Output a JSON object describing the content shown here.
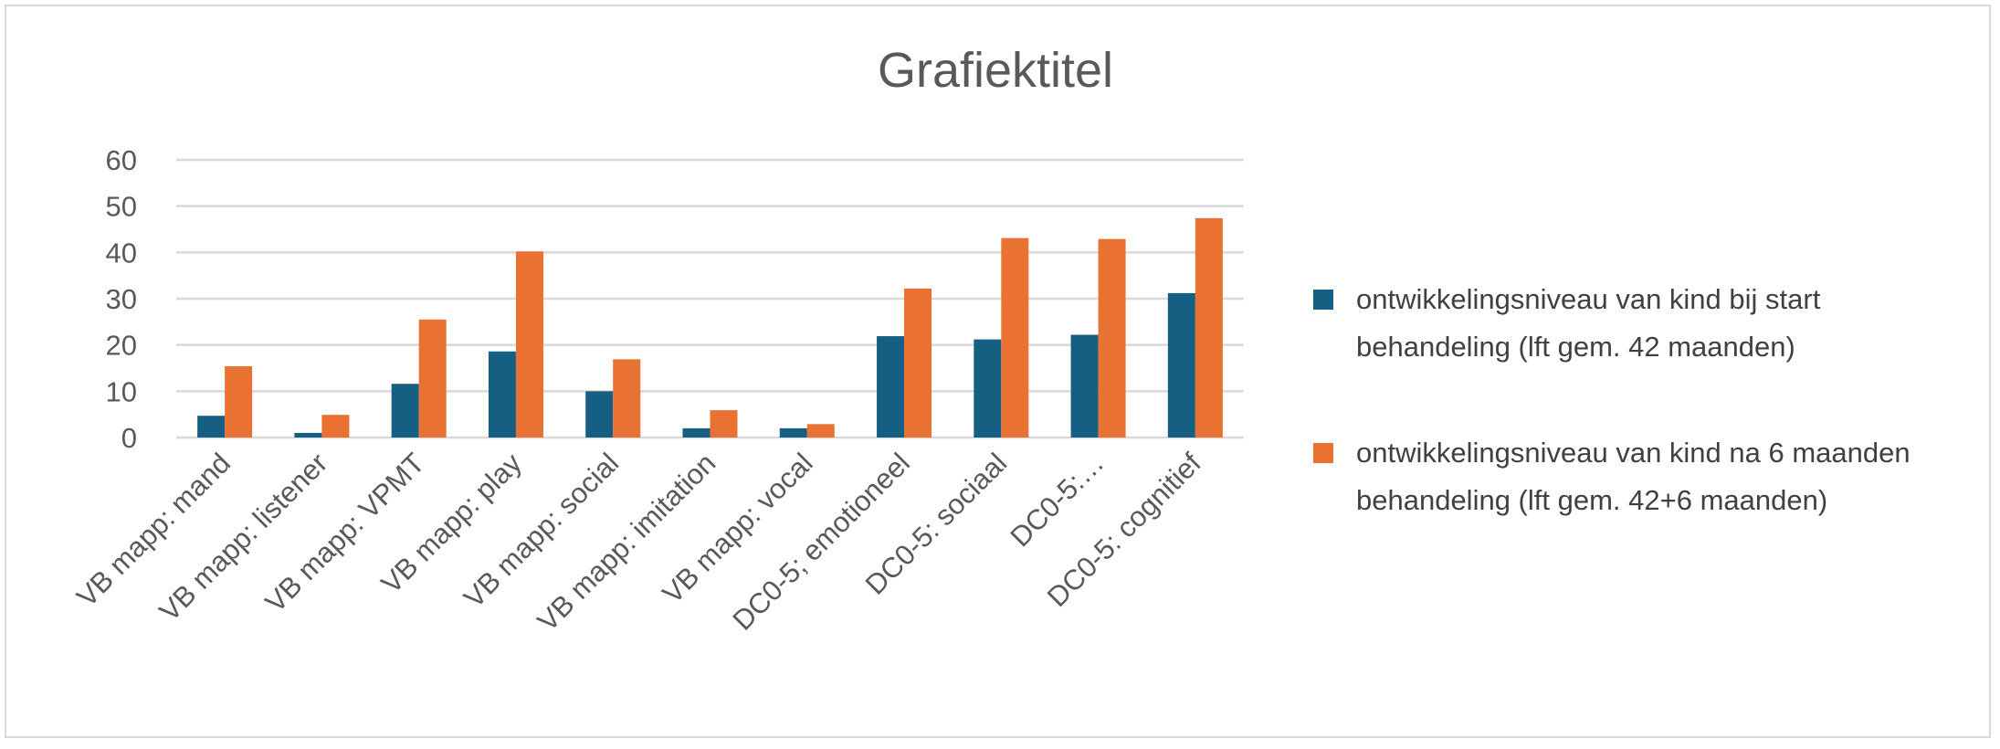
{
  "chart_data": {
    "type": "bar",
    "title": "Grafiektitel",
    "xlabel": "",
    "ylabel": "",
    "ylim": [
      0,
      60
    ],
    "yticks": [
      0,
      10,
      20,
      30,
      40,
      50,
      60
    ],
    "grid": true,
    "legend_position": "right",
    "categories": [
      "VB mapp: mand",
      "VB mapp: listener",
      "VB mapp: VPMT",
      "VB mapp: play",
      "VB mapp: social",
      "VB mapp: imitation",
      "VB mapp: vocal",
      "DC0-5; emotioneel",
      "DC0-5: sociaal",
      "DC0-5:…",
      "DC0-5: cognitief"
    ],
    "series": [
      {
        "name": "ontwikkelingsniveau van kind bij start behandeling (lft gem. 42 maanden)",
        "color": "#156082",
        "values": [
          4.7,
          1,
          11.6,
          18.6,
          10,
          2,
          2,
          21.9,
          21.2,
          22.2,
          31.2
        ]
      },
      {
        "name": "ontwikkelingsniveau van kind na 6 maanden behandeling (lft gem. 42+6 maanden)",
        "color": "#e97132",
        "values": [
          15.4,
          4.9,
          25.5,
          40.2,
          16.9,
          5.9,
          2.9,
          32.2,
          43.1,
          42.9,
          47.4
        ]
      }
    ]
  }
}
